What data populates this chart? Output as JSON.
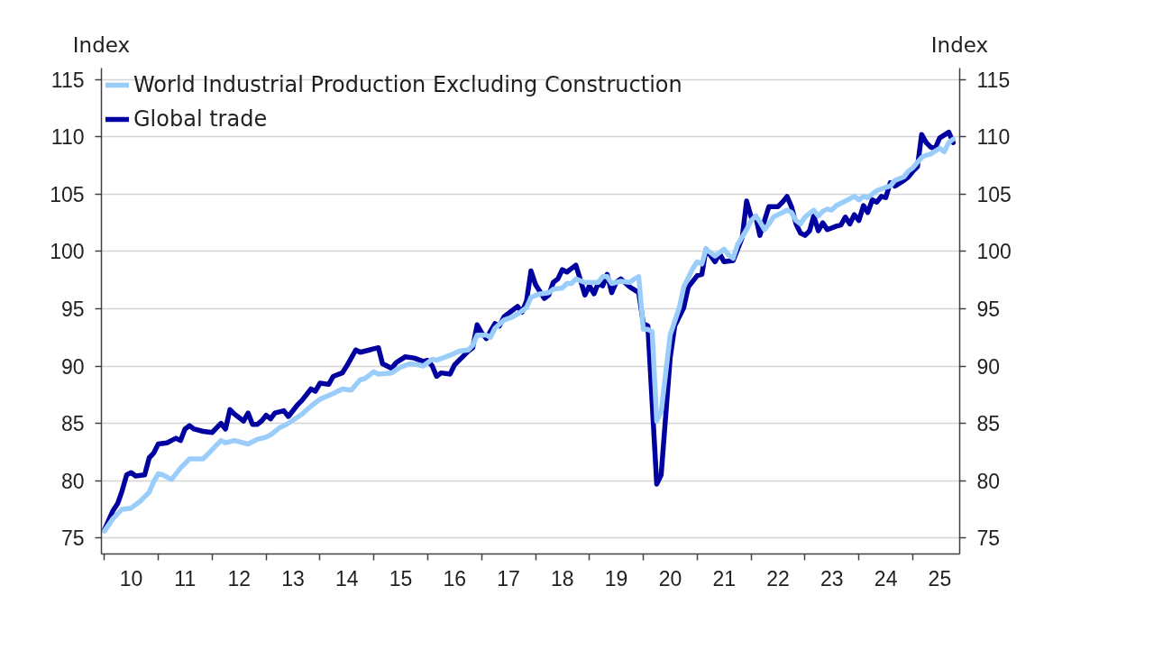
{
  "chart_data": {
    "type": "line",
    "ylabel": "Index",
    "y2label": "Index",
    "xlim": [
      "2009-12-12",
      "2025-11-14"
    ],
    "xticks": [
      {
        "value": "2010-01-01",
        "label": null
      },
      {
        "value": "2010-07-02",
        "label": "10"
      },
      {
        "value": "2011-01-01",
        "label": null
      },
      {
        "value": "2011-07-02",
        "label": "11"
      },
      {
        "value": "2012-01-01",
        "label": null
      },
      {
        "value": "2012-07-02",
        "label": "12"
      },
      {
        "value": "2013-01-01",
        "label": null
      },
      {
        "value": "2013-07-02",
        "label": "13"
      },
      {
        "value": "2014-01-01",
        "label": null
      },
      {
        "value": "2014-07-02",
        "label": "14"
      },
      {
        "value": "2015-01-01",
        "label": null
      },
      {
        "value": "2015-07-02",
        "label": "15"
      },
      {
        "value": "2016-01-01",
        "label": null
      },
      {
        "value": "2016-07-02",
        "label": "16"
      },
      {
        "value": "2017-01-01",
        "label": null
      },
      {
        "value": "2017-07-02",
        "label": "17"
      },
      {
        "value": "2018-01-01",
        "label": null
      },
      {
        "value": "2018-07-02",
        "label": "18"
      },
      {
        "value": "2019-01-01",
        "label": null
      },
      {
        "value": "2019-07-02",
        "label": "19"
      },
      {
        "value": "2020-01-01",
        "label": null
      },
      {
        "value": "2020-07-02",
        "label": "20"
      },
      {
        "value": "2021-01-01",
        "label": null
      },
      {
        "value": "2021-07-02",
        "label": "21"
      },
      {
        "value": "2022-01-01",
        "label": null
      },
      {
        "value": "2022-07-02",
        "label": "22"
      },
      {
        "value": "2023-01-01",
        "label": null
      },
      {
        "value": "2023-07-02",
        "label": "23"
      },
      {
        "value": "2024-01-01",
        "label": null
      },
      {
        "value": "2024-07-02",
        "label": "24"
      },
      {
        "value": "2025-01-01",
        "label": null
      },
      {
        "value": "2025-07-02",
        "label": "25"
      }
    ],
    "ylim": [
      73.6,
      116
    ],
    "yticks": [
      75,
      80,
      85,
      90,
      95,
      100,
      105,
      110,
      115
    ],
    "y2lim": [
      73.6,
      116
    ],
    "y2ticks": [
      75,
      80,
      85,
      90,
      95,
      100,
      105,
      110,
      115
    ],
    "grid": "y",
    "legend": "top left",
    "series": [
      {
        "name": "World Industrial Production Excluding Construction",
        "color": "#9bcdfa",
        "x": [
          "2010-01",
          "2010-03",
          "2010-05",
          "2010-07",
          "2010-09",
          "2010-11",
          "2010-12",
          "2011-01",
          "2011-02",
          "2011-04",
          "2011-06",
          "2011-08",
          "2011-11",
          "2012-01",
          "2012-03",
          "2012-04",
          "2012-06",
          "2012-07",
          "2012-09",
          "2012-11",
          "2013-01",
          "2013-02",
          "2013-04",
          "2013-06",
          "2013-09",
          "2013-11",
          "2014-01",
          "2014-04",
          "2014-06",
          "2014-08",
          "2014-10",
          "2014-11",
          "2015-01",
          "2015-02",
          "2015-05",
          "2015-07",
          "2015-09",
          "2015-11",
          "2015-12",
          "2016-02",
          "2016-03",
          "2016-05",
          "2016-07",
          "2016-08",
          "2016-10",
          "2016-11",
          "2016-12",
          "2017-02",
          "2017-03",
          "2017-04",
          "2017-06",
          "2017-08",
          "2017-10",
          "2017-11",
          "2017-12",
          "2018-02",
          "2018-04",
          "2018-05",
          "2018-07",
          "2018-08",
          "2018-09",
          "2018-10",
          "2018-12",
          "2019-02",
          "2019-03",
          "2019-04",
          "2019-05",
          "2019-06",
          "2019-08",
          "2019-10",
          "2019-11",
          "2019-12",
          "2020-01",
          "2020-02",
          "2020-03",
          "2020-04",
          "2020-05",
          "2020-07",
          "2020-09",
          "2020-10",
          "2020-12",
          "2021-01",
          "2021-02",
          "2021-03",
          "2021-05",
          "2021-07",
          "2021-08",
          "2021-09",
          "2021-10",
          "2021-12",
          "2022-01",
          "2022-02",
          "2022-03",
          "2022-04",
          "2022-05",
          "2022-06",
          "2022-09",
          "2022-10",
          "2022-11",
          "2022-12",
          "2023-01",
          "2023-03",
          "2023-04",
          "2023-05",
          "2023-06",
          "2023-07",
          "2023-08",
          "2023-10",
          "2023-12",
          "2024-01",
          "2024-02",
          "2024-03",
          "2024-05",
          "2024-07",
          "2024-08",
          "2024-09",
          "2024-11",
          "2024-12",
          "2025-01",
          "2025-03",
          "2025-04",
          "2025-05",
          "2025-07",
          "2025-08",
          "2025-09",
          "2025-10"
        ],
        "values": [
          75.6,
          76.7,
          77.5,
          77.6,
          78.2,
          79.0,
          79.9,
          80.6,
          80.5,
          80.1,
          81.1,
          81.9,
          81.9,
          82.7,
          83.5,
          83.3,
          83.5,
          83.4,
          83.2,
          83.6,
          83.8,
          84.0,
          84.6,
          85.0,
          85.8,
          86.5,
          87.1,
          87.6,
          88.0,
          87.9,
          88.8,
          88.9,
          89.5,
          89.3,
          89.4,
          89.9,
          90.2,
          90.1,
          90.0,
          90.6,
          90.5,
          90.8,
          91.1,
          91.3,
          91.4,
          91.8,
          92.7,
          92.7,
          92.5,
          93.3,
          94.0,
          94.3,
          94.8,
          95.1,
          96.0,
          96.3,
          96.4,
          96.7,
          96.8,
          97.2,
          97.2,
          97.6,
          97.3,
          97.3,
          97.3,
          97.8,
          97.8,
          97.2,
          97.4,
          97.3,
          97.6,
          97.8,
          93.2,
          93.2,
          93.0,
          85.2,
          86.0,
          92.7,
          95.1,
          96.9,
          98.5,
          99.1,
          98.9,
          100.2,
          99.6,
          100.2,
          99.7,
          99.4,
          100.6,
          101.9,
          102.7,
          103.1,
          102.6,
          101.9,
          102.4,
          103.0,
          103.6,
          103.4,
          102.7,
          102.4,
          103.0,
          103.6,
          103.1,
          103.5,
          103.7,
          103.6,
          104.0,
          104.4,
          104.8,
          104.5,
          104.8,
          104.7,
          105.3,
          105.6,
          105.7,
          106.2,
          106.5,
          107.0,
          107.3,
          108.2,
          108.4,
          108.5,
          109.0,
          108.7,
          109.5,
          109.8
        ]
      },
      {
        "name": "Global trade",
        "color": "#0000a0",
        "x": [
          "2010-01",
          "2010-03",
          "2010-04",
          "2010-05",
          "2010-06",
          "2010-07",
          "2010-08",
          "2010-10",
          "2010-11",
          "2010-12",
          "2011-01",
          "2011-03",
          "2011-04",
          "2011-05",
          "2011-06",
          "2011-07",
          "2011-08",
          "2011-09",
          "2011-11",
          "2012-01",
          "2012-03",
          "2012-04",
          "2012-05",
          "2012-06",
          "2012-08",
          "2012-09",
          "2012-10",
          "2012-11",
          "2012-12",
          "2013-01",
          "2013-02",
          "2013-03",
          "2013-05",
          "2013-06",
          "2013-08",
          "2013-09",
          "2013-11",
          "2013-12",
          "2014-01",
          "2014-03",
          "2014-04",
          "2014-06",
          "2014-07",
          "2014-09",
          "2014-10",
          "2014-12",
          "2015-01",
          "2015-02",
          "2015-03",
          "2015-05",
          "2015-06",
          "2015-08",
          "2015-10",
          "2015-12",
          "2016-01",
          "2016-02",
          "2016-03",
          "2016-04",
          "2016-06",
          "2016-07",
          "2016-09",
          "2016-10",
          "2016-11",
          "2016-12",
          "2017-01",
          "2017-02",
          "2017-04",
          "2017-05",
          "2017-06",
          "2017-08",
          "2017-09",
          "2017-10",
          "2017-11",
          "2017-12",
          "2018-01",
          "2018-03",
          "2018-04",
          "2018-05",
          "2018-06",
          "2018-07",
          "2018-08",
          "2018-10",
          "2018-11",
          "2018-12",
          "2019-01",
          "2019-02",
          "2019-03",
          "2019-04",
          "2019-05",
          "2019-06",
          "2019-07",
          "2019-08",
          "2019-10",
          "2019-12",
          "2020-01",
          "2020-02",
          "2020-04",
          "2020-05",
          "2020-07",
          "2020-08",
          "2020-10",
          "2020-11",
          "2021-01",
          "2021-02",
          "2021-03",
          "2021-05",
          "2021-06",
          "2021-07",
          "2021-09",
          "2021-11",
          "2021-12",
          "2022-01",
          "2022-02",
          "2022-03",
          "2022-05",
          "2022-07",
          "2022-08",
          "2022-09",
          "2022-10",
          "2022-11",
          "2022-12",
          "2023-01",
          "2023-02",
          "2023-03",
          "2023-04",
          "2023-05",
          "2023-06",
          "2023-08",
          "2023-09",
          "2023-10",
          "2023-11",
          "2023-12",
          "2024-01",
          "2024-02",
          "2024-03",
          "2024-04",
          "2024-05",
          "2024-06",
          "2024-07",
          "2024-08",
          "2024-09",
          "2024-11",
          "2024-12",
          "2025-01",
          "2025-02",
          "2025-03",
          "2025-04",
          "2025-05",
          "2025-06",
          "2025-07",
          "2025-09",
          "2025-10"
        ],
        "values": [
          75.7,
          77.4,
          78.0,
          79.1,
          80.5,
          80.7,
          80.4,
          80.5,
          82.0,
          82.4,
          83.2,
          83.3,
          83.5,
          83.7,
          83.5,
          84.5,
          84.8,
          84.5,
          84.3,
          84.2,
          85.0,
          84.5,
          86.2,
          85.8,
          85.2,
          85.9,
          84.9,
          84.9,
          85.2,
          85.7,
          85.4,
          85.9,
          86.1,
          85.6,
          86.6,
          87.0,
          88.0,
          87.8,
          88.5,
          88.4,
          89.1,
          89.4,
          90.0,
          91.4,
          91.2,
          91.4,
          91.5,
          91.6,
          90.2,
          89.8,
          90.3,
          90.8,
          90.7,
          90.4,
          90.5,
          90.0,
          89.1,
          89.4,
          89.3,
          90.1,
          90.9,
          91.3,
          91.6,
          93.6,
          92.9,
          92.4,
          93.7,
          93.5,
          94.3,
          94.9,
          95.2,
          94.7,
          95.7,
          98.3,
          97.1,
          95.9,
          96.2,
          97.3,
          97.6,
          98.4,
          98.2,
          98.8,
          97.5,
          96.2,
          97.0,
          96.3,
          97.2,
          97.0,
          98.0,
          96.4,
          97.3,
          97.6,
          96.9,
          96.4,
          93.7,
          93.5,
          79.7,
          80.5,
          90.7,
          93.5,
          95.1,
          96.9,
          97.9,
          98.0,
          100.2,
          99.1,
          99.8,
          99.1,
          99.2,
          101.2,
          104.4,
          103.0,
          103.0,
          101.4,
          103.9,
          103.9,
          104.3,
          104.8,
          103.9,
          102.4,
          101.6,
          101.4,
          101.8,
          103.1,
          101.8,
          102.5,
          101.9,
          102.2,
          102.3,
          103.0,
          102.4,
          103.2,
          102.7,
          104.0,
          103.4,
          104.5,
          104.3,
          104.8,
          104.7,
          106.0,
          105.7,
          106.2,
          106.5,
          107.0,
          107.4,
          110.2,
          109.5,
          109.1,
          109.0,
          109.9,
          110.4,
          109.5
        ]
      }
    ]
  }
}
